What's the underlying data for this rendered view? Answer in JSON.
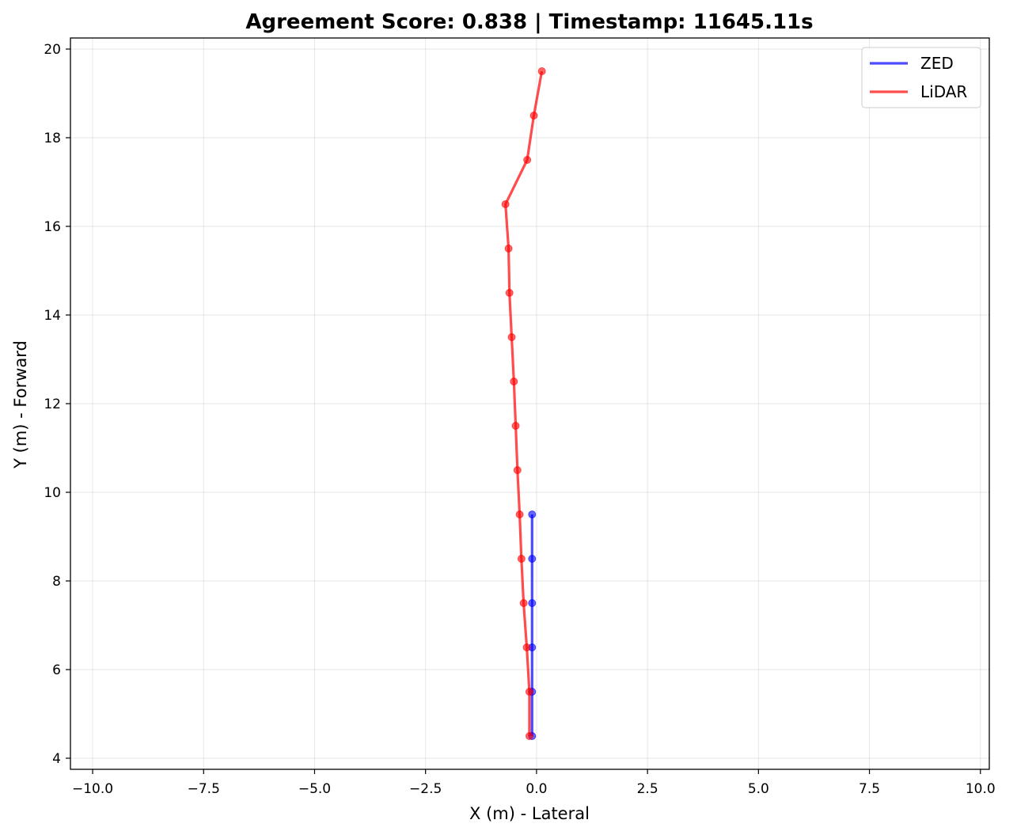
{
  "chart_data": {
    "type": "line",
    "title": "Agreement Score: 0.838 | Timestamp: 11645.11s",
    "xlabel": "X (m) - Lateral",
    "ylabel": "Y (m) - Forward",
    "xlim": [
      -10.5,
      10.2
    ],
    "ylim": [
      3.75,
      20.25
    ],
    "x_ticks": [
      -10.0,
      -7.5,
      -5.0,
      -2.5,
      0.0,
      2.5,
      5.0,
      7.5,
      10.0
    ],
    "x_tick_labels": [
      "−10.0",
      "−7.5",
      "−5.0",
      "−2.5",
      "0.0",
      "2.5",
      "5.0",
      "7.5",
      "10.0"
    ],
    "y_ticks": [
      4,
      6,
      8,
      10,
      12,
      14,
      16,
      18,
      20
    ],
    "y_tick_labels": [
      "4",
      "6",
      "8",
      "10",
      "12",
      "14",
      "16",
      "18",
      "20"
    ],
    "grid": true,
    "legend_position": "top-right",
    "series": [
      {
        "name": "ZED",
        "color": "#0000ff",
        "x": [
          -0.1,
          -0.1,
          -0.1,
          -0.1,
          -0.1,
          -0.1
        ],
        "y": [
          4.5,
          5.5,
          6.5,
          7.5,
          8.5,
          9.5
        ]
      },
      {
        "name": "LiDAR",
        "color": "#ff0000",
        "x": [
          -0.16,
          -0.16,
          -0.22,
          -0.29,
          -0.34,
          -0.38,
          -0.43,
          -0.47,
          -0.51,
          -0.56,
          -0.61,
          -0.63,
          -0.7,
          -0.21,
          -0.06,
          0.12
        ],
        "y": [
          4.5,
          5.5,
          6.5,
          7.5,
          8.5,
          9.5,
          10.5,
          11.5,
          12.5,
          13.5,
          14.5,
          15.5,
          16.5,
          17.5,
          18.5,
          19.5
        ]
      }
    ]
  }
}
